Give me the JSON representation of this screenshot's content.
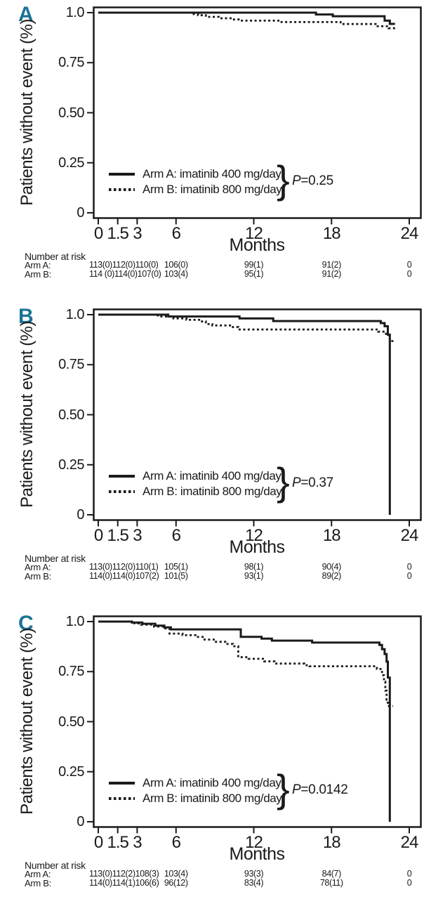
{
  "figure": {
    "accent_color": "#1b7296",
    "line_color": "#1a1a1a",
    "risk_header": "Number at risk",
    "legend_brace": "}"
  },
  "chart_data": [
    {
      "type": "line",
      "panel_label": "A",
      "title": "",
      "xlabel": "Months",
      "ylabel": "Patients without event (%)",
      "xlim": [
        0,
        24
      ],
      "ylim": [
        0,
        1.0
      ],
      "grid": false,
      "legend_position": "inside-lower-left",
      "xticks": {
        "values": [
          0,
          1.5,
          3,
          6,
          12,
          18,
          24
        ],
        "labels": [
          "0",
          "1.5",
          "3",
          "6",
          "12",
          "18",
          "24"
        ]
      },
      "yticks": {
        "values": [
          1.0,
          0.75,
          0.5,
          0.25,
          0
        ],
        "labels": [
          "1.0",
          "0.75",
          "0.50",
          "0.25",
          "0"
        ]
      },
      "p_prefix": "P",
      "p_value": "=0.25",
      "series": [
        {
          "name": "Arm A: imatinib 400 mg/day",
          "style": "solid",
          "points": [
            [
              0,
              1.0
            ],
            [
              16.8,
              1.0
            ],
            [
              16.8,
              0.991
            ],
            [
              18.1,
              0.991
            ],
            [
              18.1,
              0.982
            ],
            [
              22.1,
              0.982
            ],
            [
              22.1,
              0.96
            ],
            [
              22.5,
              0.96
            ],
            [
              22.5,
              0.944
            ],
            [
              22.9,
              0.944
            ]
          ]
        },
        {
          "name": "Arm B: imatinib 800 mg/day",
          "style": "dotted",
          "points": [
            [
              0,
              1.0
            ],
            [
              7.2,
              1.0
            ],
            [
              7.2,
              0.993
            ],
            [
              7.7,
              0.993
            ],
            [
              7.7,
              0.987
            ],
            [
              8.3,
              0.987
            ],
            [
              8.3,
              0.979
            ],
            [
              9.3,
              0.979
            ],
            [
              9.3,
              0.972
            ],
            [
              10.3,
              0.972
            ],
            [
              10.3,
              0.966
            ],
            [
              11.0,
              0.966
            ],
            [
              11.0,
              0.96
            ],
            [
              13.9,
              0.96
            ],
            [
              13.9,
              0.953
            ],
            [
              18.7,
              0.953
            ],
            [
              18.7,
              0.943
            ],
            [
              21.4,
              0.943
            ],
            [
              21.4,
              0.932
            ],
            [
              22.4,
              0.932
            ],
            [
              22.4,
              0.922
            ],
            [
              23.1,
              0.922
            ]
          ]
        }
      ],
      "number_at_risk": [
        {
          "label": "Arm A:",
          "values": [
            "113(0)",
            "112(0)",
            "110(0)",
            "106(0)",
            "99(1)",
            "91(2)",
            "0"
          ]
        },
        {
          "label": "Arm B:",
          "values": [
            "114 (0)",
            "114(0)",
            "107(0)",
            "103(4)",
            "95(1)",
            "91(2)",
            "0"
          ]
        }
      ]
    },
    {
      "type": "line",
      "panel_label": "B",
      "title": "",
      "xlabel": "Months",
      "ylabel": "Patients without event (%)",
      "xlim": [
        0,
        24
      ],
      "ylim": [
        0,
        1.0
      ],
      "grid": false,
      "legend_position": "inside-lower-left",
      "xticks": {
        "values": [
          0,
          1.5,
          3,
          6,
          12,
          18,
          24
        ],
        "labels": [
          "0",
          "1.5",
          "3",
          "6",
          "12",
          "18",
          "24"
        ]
      },
      "yticks": {
        "values": [
          1.0,
          0.75,
          0.5,
          0.25,
          0
        ],
        "labels": [
          "1.0",
          "0.75",
          "0.50",
          "0.25",
          "0"
        ]
      },
      "p_prefix": "P",
      "p_value": "=0.37",
      "series": [
        {
          "name": "Arm A: imatinib 400 mg/day",
          "style": "solid",
          "points": [
            [
              0,
              1.0
            ],
            [
              5.4,
              1.0
            ],
            [
              5.4,
              0.991
            ],
            [
              10.9,
              0.991
            ],
            [
              10.9,
              0.981
            ],
            [
              13.5,
              0.981
            ],
            [
              13.5,
              0.968
            ],
            [
              21.8,
              0.968
            ],
            [
              21.8,
              0.958
            ],
            [
              22.1,
              0.958
            ],
            [
              22.1,
              0.942
            ],
            [
              22.35,
              0.942
            ],
            [
              22.35,
              0.9
            ],
            [
              22.5,
              0.9
            ],
            [
              22.5,
              0.0
            ]
          ]
        },
        {
          "name": "Arm B: imatinib 800 mg/day",
          "style": "dotted",
          "points": [
            [
              0,
              1.0
            ],
            [
              4.6,
              1.0
            ],
            [
              4.6,
              0.991
            ],
            [
              5.8,
              0.991
            ],
            [
              5.8,
              0.981
            ],
            [
              6.8,
              0.981
            ],
            [
              6.8,
              0.974
            ],
            [
              7.9,
              0.974
            ],
            [
              7.9,
              0.966
            ],
            [
              8.3,
              0.966
            ],
            [
              8.3,
              0.953
            ],
            [
              8.8,
              0.953
            ],
            [
              8.8,
              0.946
            ],
            [
              10.3,
              0.946
            ],
            [
              10.3,
              0.938
            ],
            [
              10.8,
              0.938
            ],
            [
              10.8,
              0.926
            ],
            [
              21.6,
              0.926
            ],
            [
              21.6,
              0.915
            ],
            [
              22.2,
              0.915
            ],
            [
              22.2,
              0.898
            ],
            [
              22.5,
              0.898
            ],
            [
              22.5,
              0.868
            ],
            [
              22.9,
              0.868
            ]
          ]
        }
      ],
      "number_at_risk": [
        {
          "label": "Arm A:",
          "values": [
            "113(0)",
            "112(0)",
            "110(1)",
            "105(1)",
            "98(1)",
            "90(4)",
            "0"
          ]
        },
        {
          "label": "Arm B:",
          "values": [
            "114(0)",
            "114(0)",
            "107(2)",
            "101(5)",
            "93(1)",
            "89(2)",
            "0"
          ]
        }
      ]
    },
    {
      "type": "line",
      "panel_label": "C",
      "title": "",
      "xlabel": "Months",
      "ylabel": "Patients without event (%)",
      "xlim": [
        0,
        24
      ],
      "ylim": [
        0,
        1.0
      ],
      "grid": false,
      "legend_position": "inside-lower-left",
      "xticks": {
        "values": [
          0,
          1.5,
          3,
          6,
          12,
          18,
          24
        ],
        "labels": [
          "0",
          "1.5",
          "3",
          "6",
          "12",
          "18",
          "24"
        ]
      },
      "yticks": {
        "values": [
          1.0,
          0.75,
          0.5,
          0.25,
          0
        ],
        "labels": [
          "1.0",
          "0.75",
          "0.50",
          "0.25",
          "0"
        ]
      },
      "p_prefix": "P",
      "p_value": "=0.0142",
      "series": [
        {
          "name": "Arm A: imatinib 400 mg/day",
          "style": "solid",
          "points": [
            [
              0,
              1.0
            ],
            [
              2.6,
              1.0
            ],
            [
              2.6,
              0.995
            ],
            [
              3.4,
              0.995
            ],
            [
              3.4,
              0.989
            ],
            [
              4.4,
              0.989
            ],
            [
              4.4,
              0.98
            ],
            [
              5.1,
              0.98
            ],
            [
              5.1,
              0.971
            ],
            [
              5.6,
              0.971
            ],
            [
              5.6,
              0.961
            ],
            [
              11.0,
              0.961
            ],
            [
              11.0,
              0.924
            ],
            [
              12.6,
              0.924
            ],
            [
              12.6,
              0.915
            ],
            [
              13.4,
              0.915
            ],
            [
              13.4,
              0.905
            ],
            [
              16.5,
              0.905
            ],
            [
              16.5,
              0.895
            ],
            [
              21.7,
              0.895
            ],
            [
              21.7,
              0.883
            ],
            [
              21.9,
              0.883
            ],
            [
              21.9,
              0.862
            ],
            [
              22.1,
              0.862
            ],
            [
              22.1,
              0.838
            ],
            [
              22.25,
              0.838
            ],
            [
              22.25,
              0.8
            ],
            [
              22.35,
              0.8
            ],
            [
              22.35,
              0.72
            ],
            [
              22.5,
              0.72
            ],
            [
              22.5,
              0.0
            ]
          ]
        },
        {
          "name": "Arm B: imatinib 800 mg/day",
          "style": "dotted",
          "points": [
            [
              0,
              1.0
            ],
            [
              2.8,
              1.0
            ],
            [
              2.8,
              0.991
            ],
            [
              3.3,
              0.991
            ],
            [
              3.3,
              0.985
            ],
            [
              4.3,
              0.985
            ],
            [
              4.3,
              0.975
            ],
            [
              5.0,
              0.975
            ],
            [
              5.0,
              0.966
            ],
            [
              5.5,
              0.966
            ],
            [
              5.5,
              0.94
            ],
            [
              6.5,
              0.94
            ],
            [
              6.5,
              0.932
            ],
            [
              7.5,
              0.932
            ],
            [
              7.5,
              0.923
            ],
            [
              8.2,
              0.923
            ],
            [
              8.2,
              0.91
            ],
            [
              9.0,
              0.91
            ],
            [
              9.0,
              0.899
            ],
            [
              9.8,
              0.899
            ],
            [
              9.8,
              0.888
            ],
            [
              10.4,
              0.888
            ],
            [
              10.4,
              0.877
            ],
            [
              10.8,
              0.877
            ],
            [
              10.8,
              0.822
            ],
            [
              11.6,
              0.822
            ],
            [
              11.6,
              0.814
            ],
            [
              12.8,
              0.814
            ],
            [
              12.8,
              0.801
            ],
            [
              13.6,
              0.801
            ],
            [
              13.6,
              0.79
            ],
            [
              15.9,
              0.79
            ],
            [
              15.9,
              0.782
            ],
            [
              16.3,
              0.782
            ],
            [
              16.3,
              0.777
            ],
            [
              21.5,
              0.777
            ],
            [
              21.5,
              0.763
            ],
            [
              21.9,
              0.763
            ],
            [
              21.9,
              0.732
            ],
            [
              22.05,
              0.732
            ],
            [
              22.05,
              0.7
            ],
            [
              22.15,
              0.7
            ],
            [
              22.15,
              0.655
            ],
            [
              22.25,
              0.655
            ],
            [
              22.25,
              0.61
            ],
            [
              22.35,
              0.61
            ],
            [
              22.35,
              0.578
            ],
            [
              22.75,
              0.578
            ]
          ]
        }
      ],
      "number_at_risk": [
        {
          "label": "Arm A:",
          "values": [
            "113(0)",
            "112(2)",
            "108(3)",
            "103(4)",
            "93(3)",
            "84(7)",
            "0"
          ]
        },
        {
          "label": "Arm B:",
          "values": [
            "114(0)",
            "114(1)",
            "106(6)",
            "96(12)",
            "83(4)",
            "78(11)",
            "0"
          ]
        }
      ]
    }
  ]
}
